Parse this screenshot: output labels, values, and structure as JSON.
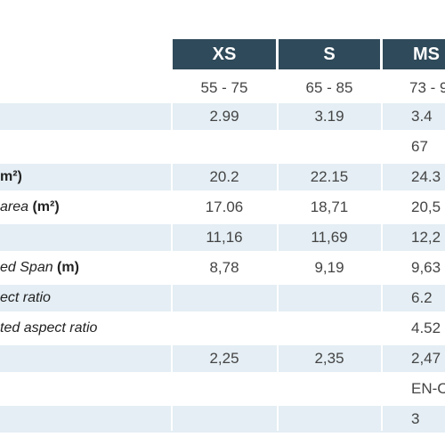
{
  "table": {
    "columns": [
      "XS",
      "S",
      "MS"
    ],
    "weight_range": [
      "55 - 75",
      "65 - 85",
      "73 - 9"
    ],
    "rows": [
      {
        "label_plain": "",
        "label_italic": "",
        "label_unit": "",
        "values": [
          "2.99",
          "3.19",
          "3.4"
        ]
      },
      {
        "label_plain": "",
        "label_italic": "",
        "label_unit": "",
        "values": [
          "",
          "",
          "67"
        ]
      },
      {
        "label_plain": "",
        "label_italic": "",
        "label_unit": "m²)",
        "values": [
          "20.2",
          "22.15",
          "24.3"
        ]
      },
      {
        "label_plain": "",
        "label_italic": "area",
        "label_unit": " (m²)",
        "values": [
          "17.06",
          "18,71",
          "20,5"
        ]
      },
      {
        "label_plain": "",
        "label_italic": "",
        "label_unit": "",
        "values": [
          "11,16",
          "11,69",
          "12,2"
        ]
      },
      {
        "label_plain": "",
        "label_italic": "ed Span",
        "label_unit": " (m)",
        "values": [
          "8,78",
          "9,19",
          "9,63"
        ]
      },
      {
        "label_plain": "",
        "label_italic": "ect ratio",
        "label_unit": "",
        "values": [
          "",
          "",
          "6.2"
        ]
      },
      {
        "label_plain": "",
        "label_italic": "ted aspect ratio",
        "label_unit": "",
        "values": [
          "",
          "",
          "4.52"
        ]
      },
      {
        "label_plain": "",
        "label_italic": "",
        "label_unit": "",
        "values": [
          "2,25",
          "2,35",
          "2,47"
        ]
      },
      {
        "label_plain": "",
        "label_italic": "",
        "label_unit": "",
        "values": [
          "",
          "",
          "EN-C"
        ]
      },
      {
        "label_plain": "",
        "label_italic": "",
        "label_unit": "",
        "values": [
          "",
          "",
          "3"
        ]
      }
    ]
  },
  "colors": {
    "header_bg": "#2f4a5a",
    "row_shade": "#e4eef4",
    "text": "#444444"
  }
}
